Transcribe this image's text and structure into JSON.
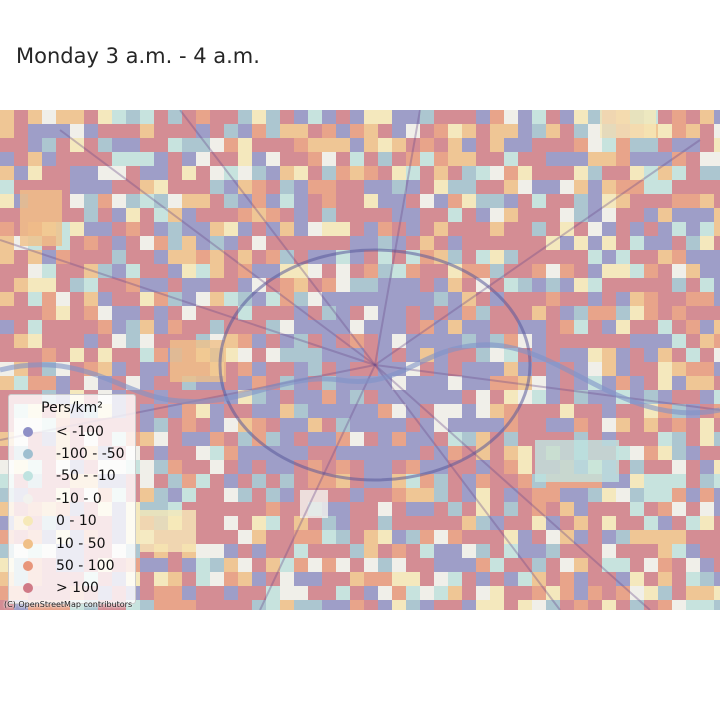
{
  "title": "Monday 3 a.m. - 4 a.m.",
  "attribution": "(C) OpenStreetMap contributors",
  "legend": {
    "title": "Pers/km²",
    "items": [
      {
        "label": "< -100",
        "color": "#8e8fc6"
      },
      {
        "label": "-100 - -50",
        "color": "#9fbfd0"
      },
      {
        "label": "-50 - -10",
        "color": "#bfe3e0"
      },
      {
        "label": "-10 - 0",
        "color": "#f2f2ee"
      },
      {
        "label": "0 - 10",
        "color": "#f6e9b8"
      },
      {
        "label": "10 - 50",
        "color": "#f0c088"
      },
      {
        "label": "50 - 100",
        "color": "#e8967a"
      },
      {
        "label": "> 100",
        "color": "#d07a86"
      }
    ]
  }
}
